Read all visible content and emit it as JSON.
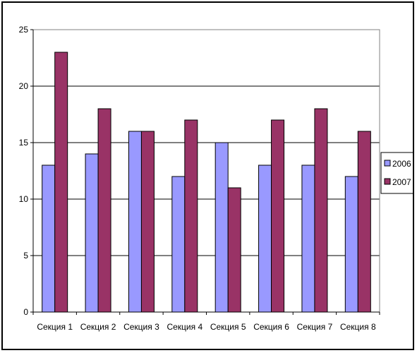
{
  "chart_data": {
    "type": "bar",
    "categories": [
      "Секция 1",
      "Секция 2",
      "Секция 3",
      "Секция 4",
      "Секция 5",
      "Секция 6",
      "Секция 7",
      "Секция 8"
    ],
    "series": [
      {
        "name": "2006",
        "values": [
          13,
          14,
          16,
          12,
          15,
          13,
          13,
          12
        ],
        "color": "#9999ff"
      },
      {
        "name": "2007",
        "values": [
          23,
          18,
          16,
          17,
          11,
          17,
          18,
          16
        ],
        "color": "#993366"
      }
    ],
    "yticks": [
      "0",
      "5",
      "10",
      "15",
      "20",
      "25"
    ],
    "ylim": [
      0,
      25
    ],
    "grid": true,
    "legend_position": "right",
    "title": "",
    "xlabel": "",
    "ylabel": ""
  }
}
